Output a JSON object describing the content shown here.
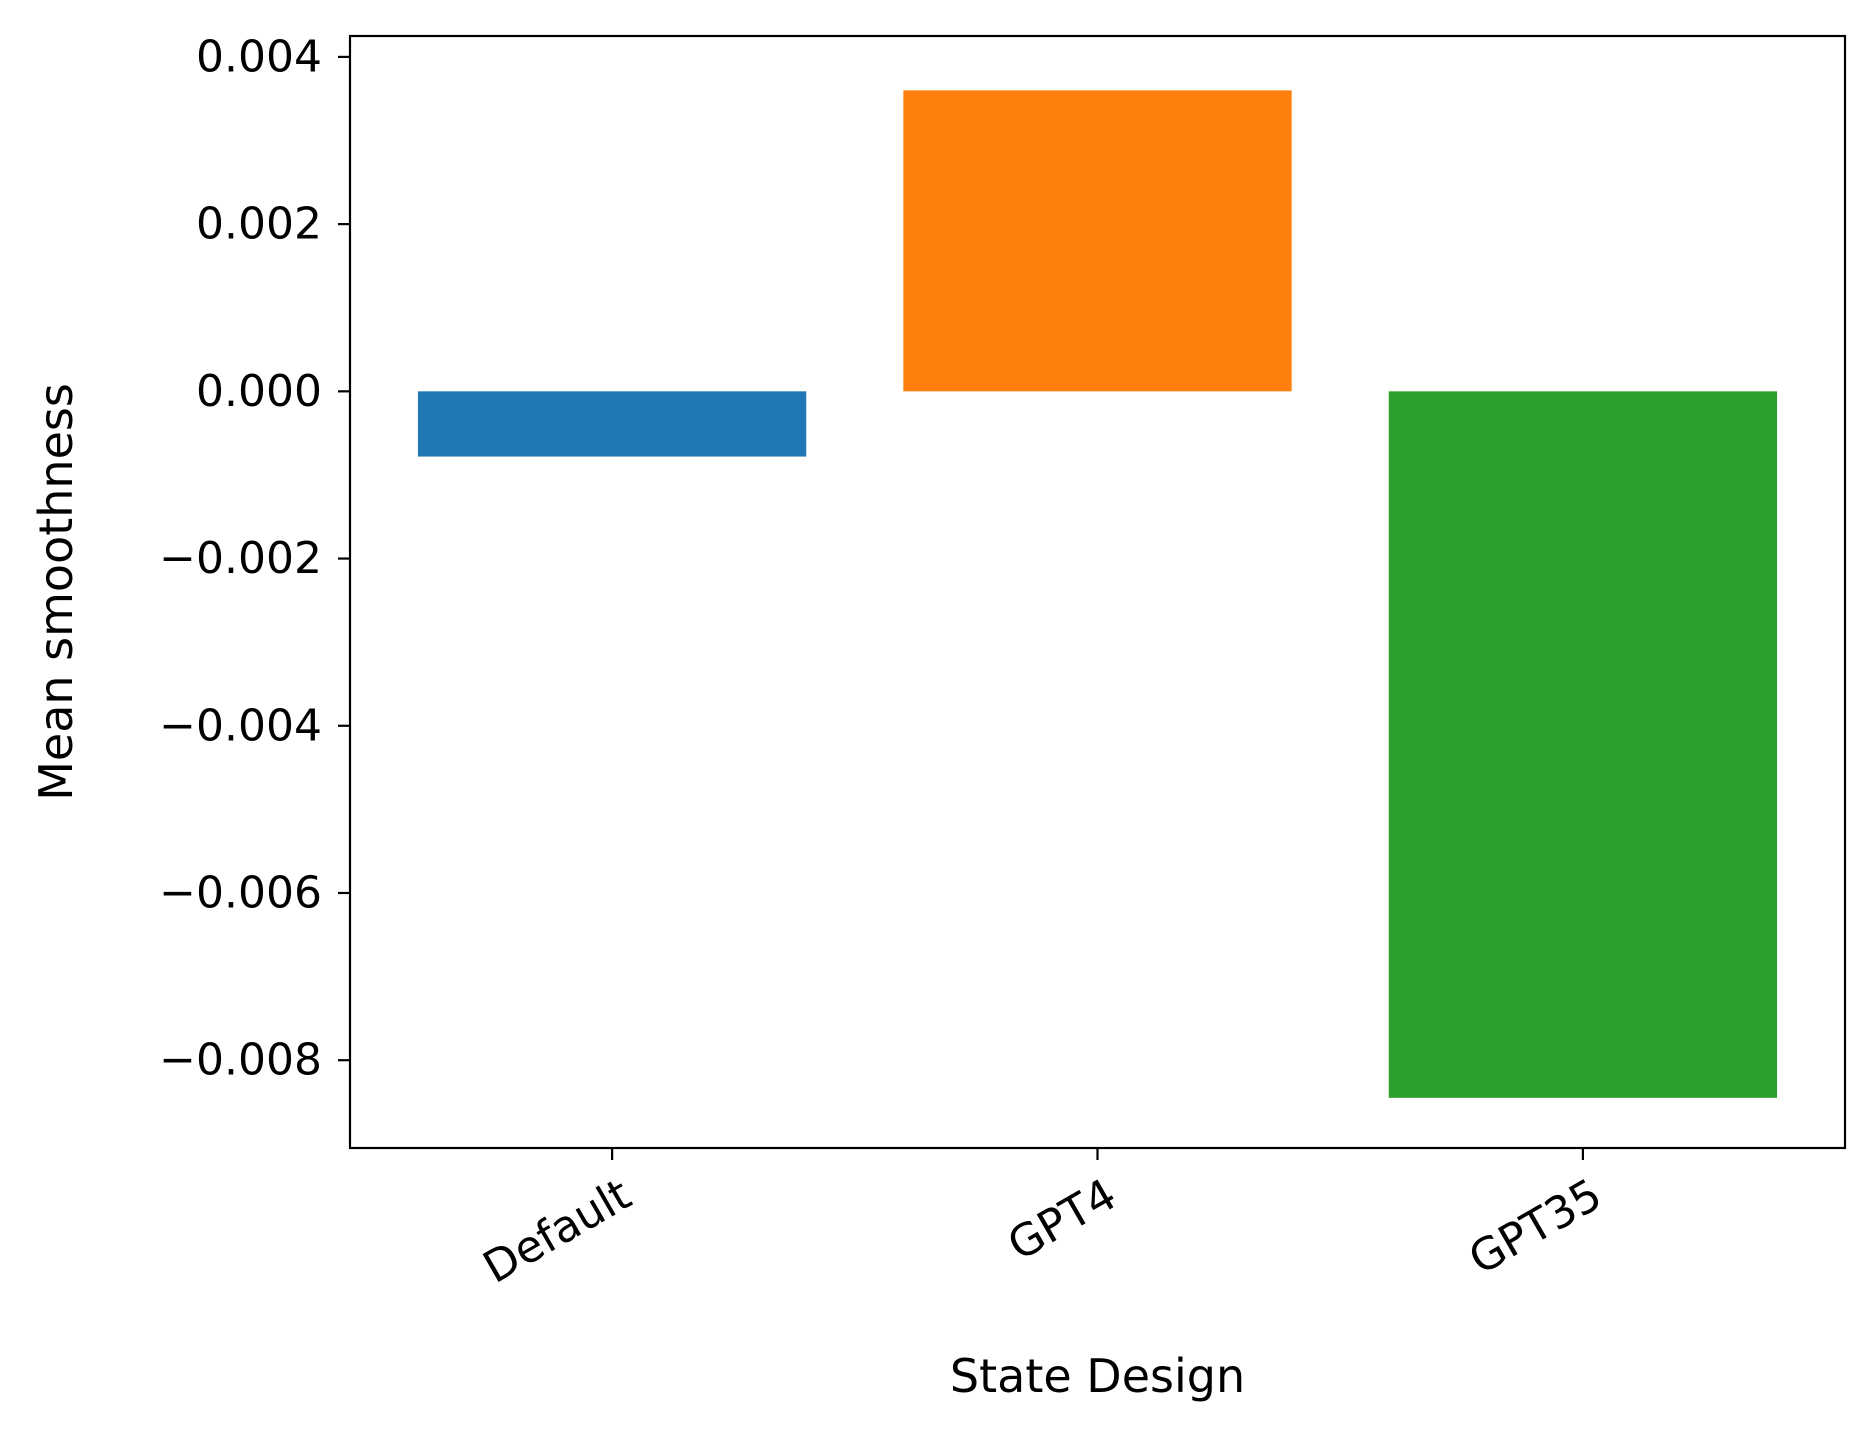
{
  "chart_data": {
    "type": "bar",
    "categories": [
      "Default",
      "GPT4",
      "GPT35"
    ],
    "values": [
      -0.00078,
      0.0036,
      -0.00845
    ],
    "colors": [
      "#1f77b4",
      "#ff7f0e",
      "#2ca02c"
    ],
    "title": "",
    "xlabel": "State Design",
    "ylabel": "Mean smoothness",
    "ylim": [
      -0.00905,
      0.00425
    ],
    "yticks": [
      0.004,
      0.002,
      0.0,
      -0.002,
      -0.004,
      -0.006,
      -0.008
    ],
    "ytick_labels": [
      "0.004",
      "0.002",
      "0.000",
      "−0.002",
      "−0.004",
      "−0.006",
      "−0.008"
    ],
    "grid": false,
    "legend": "none"
  }
}
